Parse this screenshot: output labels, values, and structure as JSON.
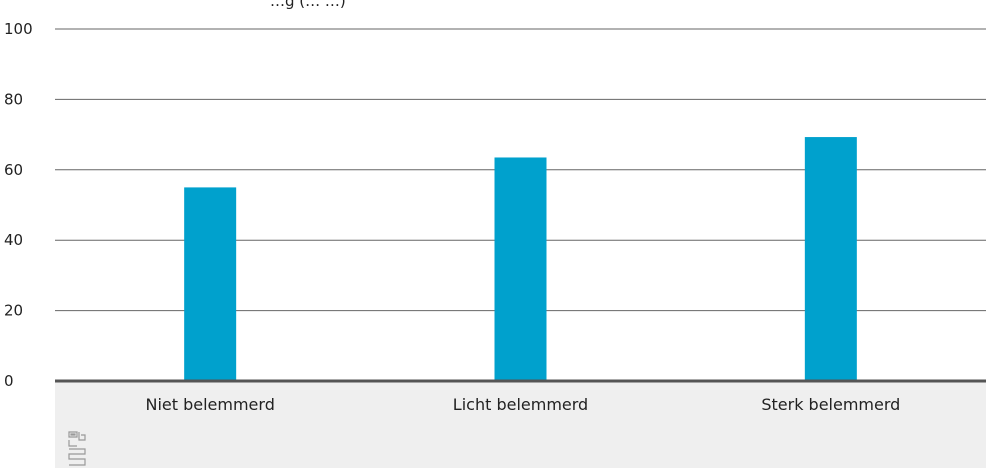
{
  "chart_data": {
    "type": "bar",
    "title": "…g (…           …)",
    "categories": [
      "Niet belemmerd",
      "Licht belemmerd",
      "Sterk belemmerd"
    ],
    "values": [
      55,
      63.5,
      69.3
    ],
    "ylim": [
      0,
      100
    ],
    "yticks": [
      0,
      20,
      40,
      60,
      80,
      100
    ],
    "grid": true,
    "colors": {
      "bar": "#00a1cd",
      "footer_bg": "#efefef",
      "grid": "#666666",
      "baseline": "#555555"
    }
  },
  "logo": {
    "name": "cbs-logo-icon",
    "text": "cbs"
  }
}
